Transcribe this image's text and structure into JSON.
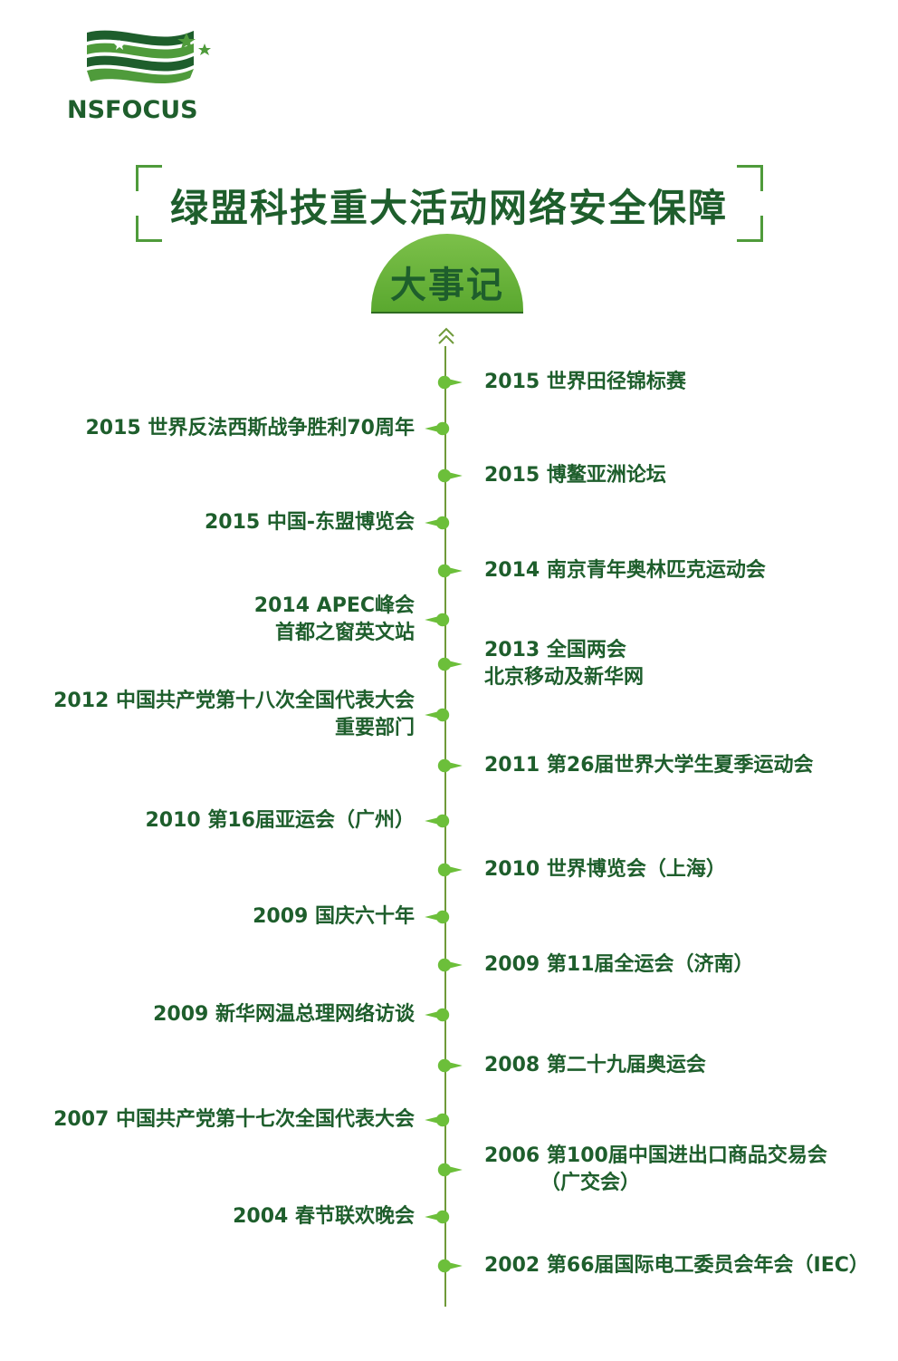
{
  "logo": {
    "text": "NSFOCUS",
    "colors": [
      "#1e5e2c",
      "#4f9b3b"
    ]
  },
  "title": "绿盟科技重大活动网络安全保障",
  "subtitle": "大事记",
  "colors": {
    "accent": "#5aa82f",
    "text": "#1e5e2c",
    "line": "#6f9a3a"
  },
  "events": [
    {
      "side": "right",
      "lines": [
        "2015 世界田径锦标赛"
      ]
    },
    {
      "side": "left",
      "lines": [
        "2015 世界反法西斯战争胜利70周年"
      ]
    },
    {
      "side": "right",
      "lines": [
        "2015 博鳌亚洲论坛"
      ]
    },
    {
      "side": "left",
      "lines": [
        "2015 中国-东盟博览会"
      ]
    },
    {
      "side": "right",
      "lines": [
        "2014 南京青年奥林匹克运动会"
      ]
    },
    {
      "side": "left",
      "lines": [
        "2014 APEC峰会",
        "首都之窗英文站"
      ]
    },
    {
      "side": "right",
      "lines": [
        "2013 全国两会",
        "北京移动及新华网"
      ]
    },
    {
      "side": "left",
      "lines": [
        "2012 中国共产党第十八次全国代表大会",
        "重要部门"
      ]
    },
    {
      "side": "right",
      "lines": [
        "2011 第26届世界大学生夏季运动会"
      ]
    },
    {
      "side": "left",
      "lines": [
        "2010 第16届亚运会（广州）"
      ]
    },
    {
      "side": "right",
      "lines": [
        "2010 世界博览会（上海）"
      ]
    },
    {
      "side": "left",
      "lines": [
        "2009 国庆六十年"
      ]
    },
    {
      "side": "right",
      "lines": [
        "2009 第11届全运会（济南）"
      ]
    },
    {
      "side": "left",
      "lines": [
        "2009 新华网温总理网络访谈"
      ]
    },
    {
      "side": "right",
      "lines": [
        "2008 第二十九届奥运会"
      ]
    },
    {
      "side": "left",
      "lines": [
        "2007 中国共产党第十七次全国代表大会"
      ]
    },
    {
      "side": "right",
      "lines": [
        "2006 第100届中国进出口商品交易会",
        "（广交会）"
      ]
    },
    {
      "side": "left",
      "lines": [
        "2004 春节联欢晚会"
      ]
    },
    {
      "side": "right",
      "lines": [
        "2002 第66届国际电工委员会年会（IEC）"
      ]
    }
  ]
}
